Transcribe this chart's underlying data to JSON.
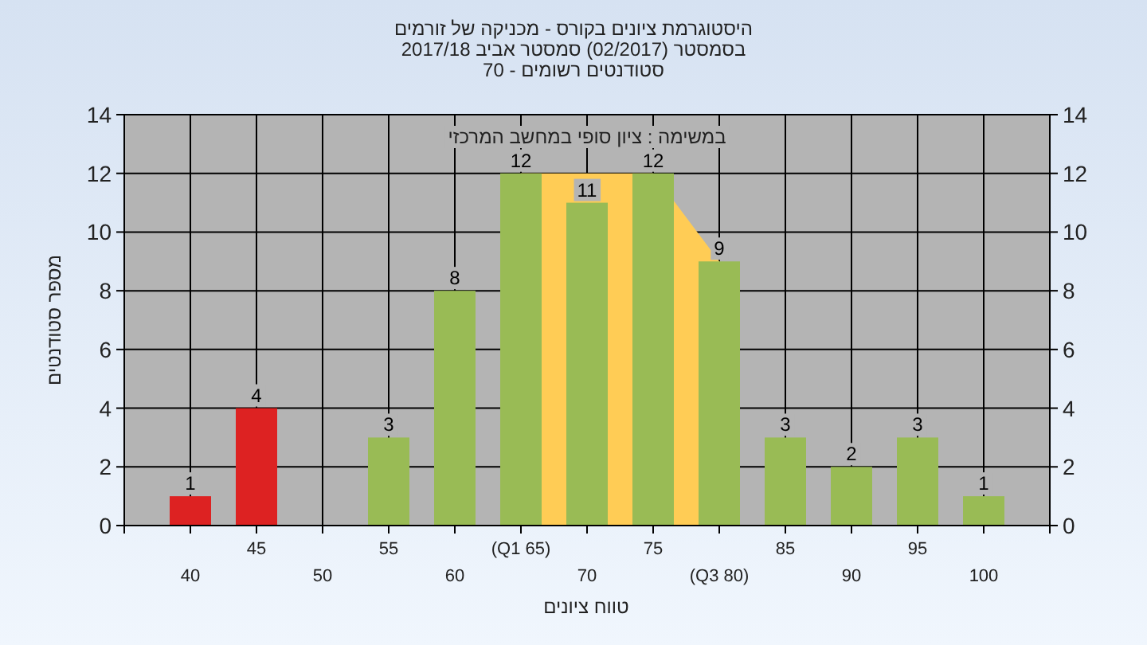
{
  "chart_data": {
    "type": "bar",
    "title": "היסטוגרמת ציונים בקורס - מכניקה של זורמים\nבסמסטר  (02/2017)  סמסטר אביב 2017/18\nסטודנטים רשומים - 70",
    "xlabel": "טווח ציונים",
    "ylabel": "מספר סטודנטים",
    "annotations": [
      "במשימה : ציון סופי במחשב המרכזי"
    ],
    "categories": [
      "40",
      "45",
      "50",
      "55",
      "60",
      "(Q1 65)",
      "70",
      "75",
      "(Q3 80)",
      "85",
      "90",
      "95",
      "100"
    ],
    "series": [
      {
        "type": "area",
        "color": "#ffcc55",
        "values": [
          null,
          null,
          null,
          null,
          null,
          12,
          12,
          12,
          9,
          null,
          null,
          null,
          null
        ]
      },
      {
        "colors": [
          "#dd2222",
          "#dd2222",
          null,
          "#99bb55",
          "#99bb55",
          "#99bb55",
          "#99bb55",
          "#99bb55",
          "#99bb55",
          "#99bb55",
          "#99bb55",
          "#99bb55",
          "#99bb55"
        ],
        "values": [
          1,
          4,
          null,
          3,
          8,
          12,
          11,
          12,
          9,
          3,
          2,
          3,
          1
        ],
        "value_labels": [
          "1",
          "4",
          null,
          "3",
          "8",
          "12",
          "11",
          "12",
          "9",
          "3",
          "2",
          "3",
          "1"
        ]
      }
    ],
    "ylim": [
      0,
      14
    ],
    "yticks": [
      0,
      2,
      4,
      6,
      8,
      10,
      12,
      14
    ],
    "y2lim": [
      0,
      14
    ],
    "y2ticks": [
      0,
      2,
      4,
      6,
      8,
      10,
      12,
      14
    ],
    "grid": true
  }
}
